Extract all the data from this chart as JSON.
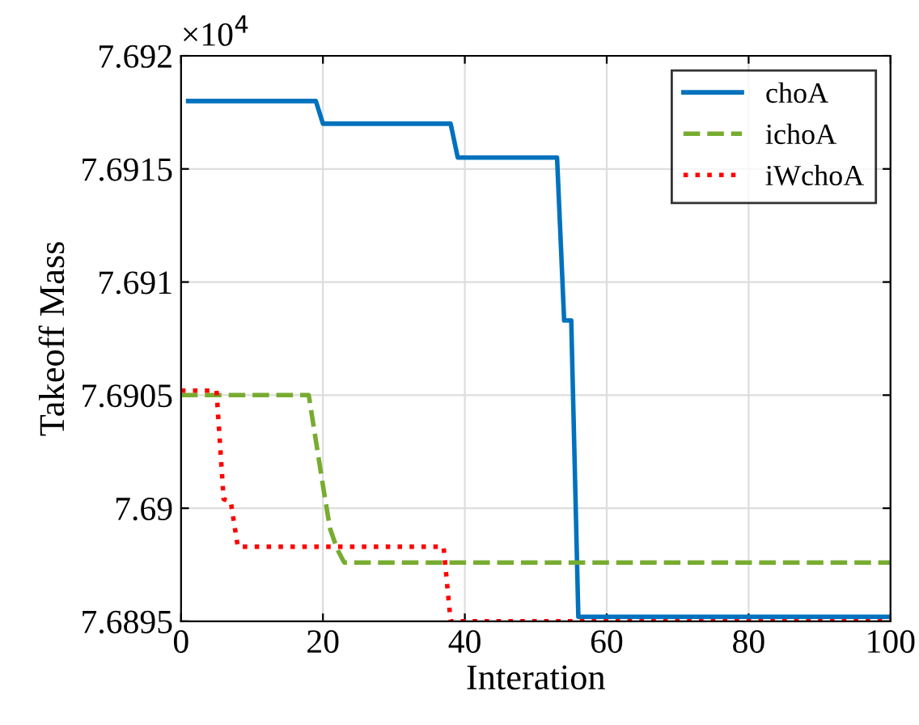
{
  "chart_data": {
    "type": "line",
    "xlabel": "Interation",
    "ylabel": "Takeoff Mass",
    "annotations": [
      "×10$^{4}$"
    ],
    "xlim": [
      0,
      100
    ],
    "xticks": [
      0,
      20,
      40,
      60,
      80,
      100
    ],
    "ylim": [
      7.6895,
      7.692
    ],
    "yticks": [
      7.6895,
      7.69,
      7.6905,
      7.691,
      7.6915,
      7.692
    ],
    "grid": true,
    "legend": "top right",
    "marker": "none",
    "series": [
      {
        "name": "choA",
        "color": "#0072bd",
        "line_style": "solid",
        "x": [
          1,
          19,
          20,
          38,
          39,
          53,
          54,
          55,
          56,
          100
        ],
        "values": [
          7.6918,
          7.6918,
          7.6917,
          7.6917,
          7.69155,
          7.69155,
          7.69083,
          7.69083,
          7.68952,
          7.68952
        ]
      },
      {
        "name": "ichoA",
        "color": "#77ac30",
        "line_style": "dashed",
        "x": [
          0,
          18,
          19,
          20,
          21,
          22,
          23,
          100
        ],
        "values": [
          7.6905,
          7.6905,
          7.6903,
          7.6901,
          7.68991,
          7.68982,
          7.68976,
          7.68976
        ]
      },
      {
        "name": "iWchoA",
        "color": "#ff0000",
        "line_style": "dotted",
        "x": [
          0,
          5,
          6,
          7,
          8,
          37,
          38,
          100
        ],
        "values": [
          7.69052,
          7.69052,
          7.69004,
          7.69003,
          7.68983,
          7.68983,
          7.6895,
          7.6895
        ]
      }
    ]
  }
}
